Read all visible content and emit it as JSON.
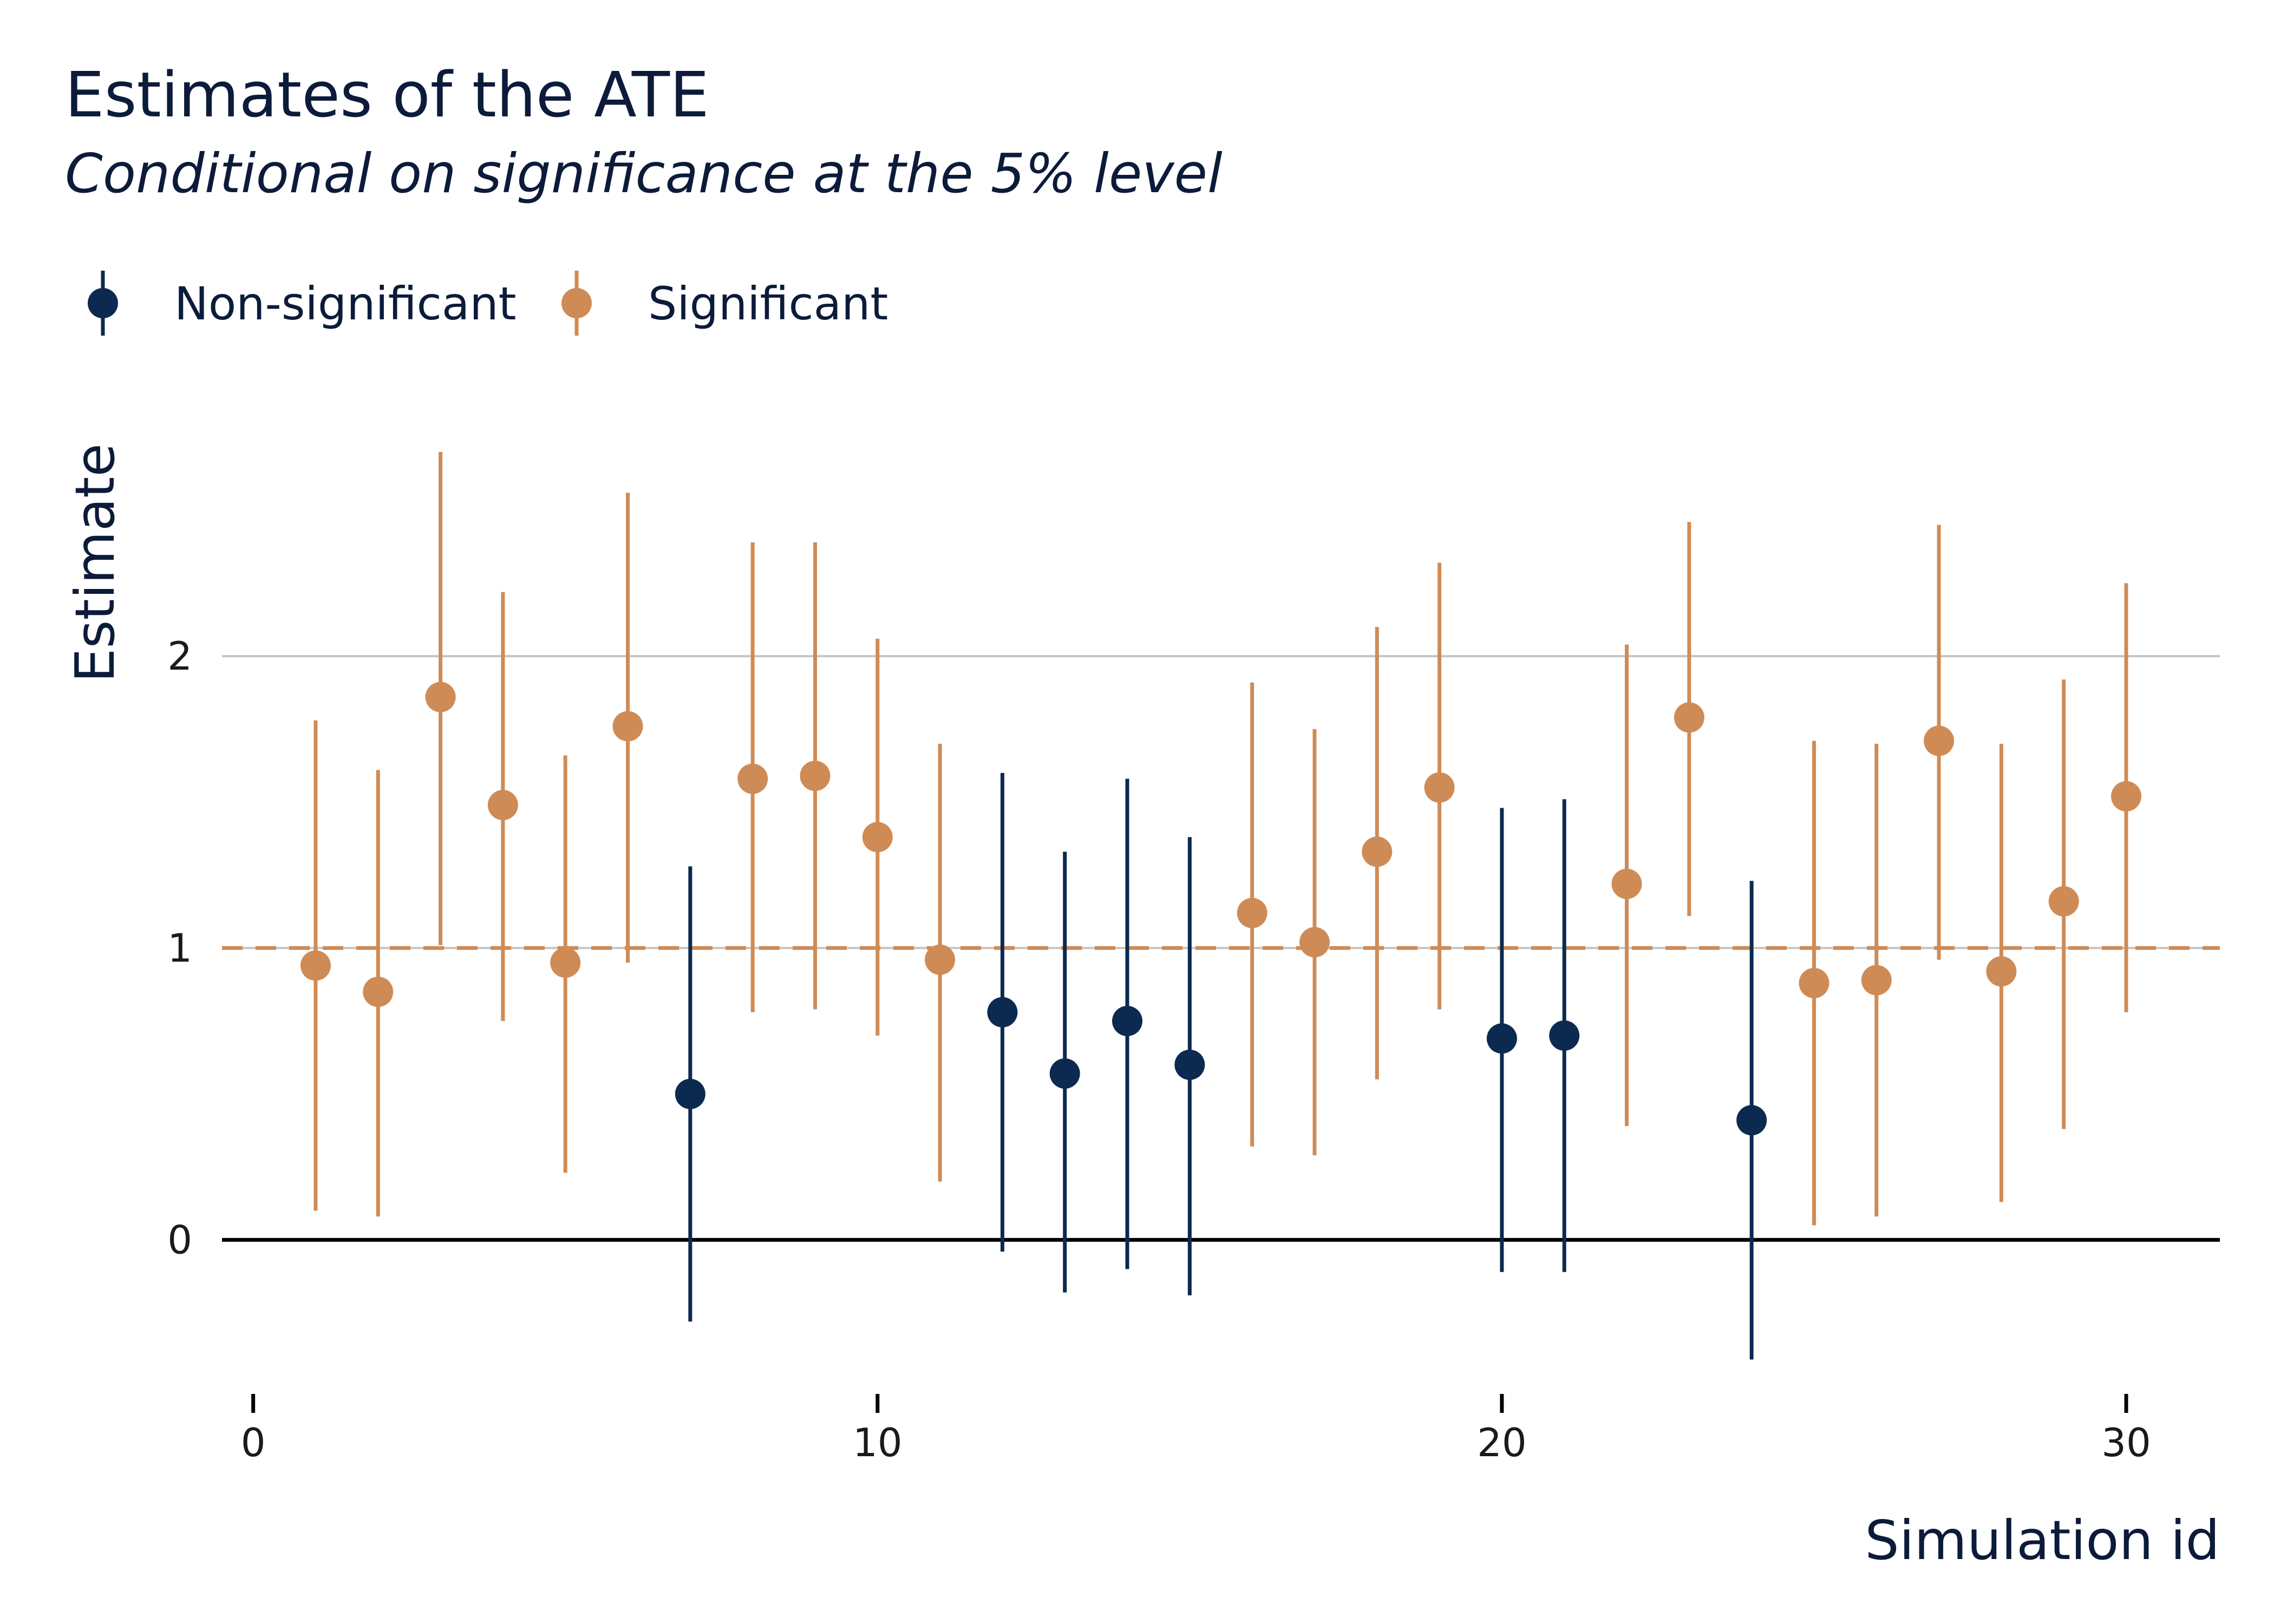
{
  "chart_data": {
    "type": "scatter",
    "title": "Estimates of the ATE",
    "subtitle": "Conditional on significance at the 5% level",
    "xlabel": "Simulation id",
    "ylabel": "Estimate",
    "xlim": [
      -0.5,
      31.5
    ],
    "ylim": [
      -0.5,
      2.95
    ],
    "x_ticks": [
      0,
      10,
      20,
      30
    ],
    "y_ticks": [
      0,
      1,
      2
    ],
    "grid": "horizontal",
    "legend_placement": "top-left",
    "reference_lines": [
      {
        "value": 0,
        "style": "solid"
      },
      {
        "value": 1,
        "style": "dashed"
      }
    ],
    "colors": {
      "Non-significant": "#0c2a4f",
      "Significant": "#cf8b55",
      "text": "#0c1b3a",
      "grid": "#c4c4c4",
      "zero_line": "#000000"
    },
    "series": [
      {
        "name": "Non-significant",
        "points": [
          {
            "x": 7,
            "y": 0.5,
            "lo": -0.28,
            "hi": 1.28
          },
          {
            "x": 12,
            "y": 0.78,
            "lo": -0.04,
            "hi": 1.6
          },
          {
            "x": 13,
            "y": 0.57,
            "lo": -0.18,
            "hi": 1.33
          },
          {
            "x": 14,
            "y": 0.75,
            "lo": -0.1,
            "hi": 1.58
          },
          {
            "x": 15,
            "y": 0.6,
            "lo": -0.19,
            "hi": 1.38
          },
          {
            "x": 20,
            "y": 0.69,
            "lo": -0.11,
            "hi": 1.48
          },
          {
            "x": 21,
            "y": 0.7,
            "lo": -0.11,
            "hi": 1.51
          },
          {
            "x": 24,
            "y": 0.41,
            "lo": -0.41,
            "hi": 1.23
          }
        ]
      },
      {
        "name": "Significant",
        "points": [
          {
            "x": 1,
            "y": 0.94,
            "lo": 0.1,
            "hi": 1.78
          },
          {
            "x": 2,
            "y": 0.85,
            "lo": 0.08,
            "hi": 1.61
          },
          {
            "x": 3,
            "y": 1.86,
            "lo": 1.01,
            "hi": 2.7
          },
          {
            "x": 4,
            "y": 1.49,
            "lo": 0.75,
            "hi": 2.22
          },
          {
            "x": 5,
            "y": 0.95,
            "lo": 0.23,
            "hi": 1.66
          },
          {
            "x": 6,
            "y": 1.76,
            "lo": 0.95,
            "hi": 2.56
          },
          {
            "x": 8,
            "y": 1.58,
            "lo": 0.78,
            "hi": 2.39
          },
          {
            "x": 9,
            "y": 1.59,
            "lo": 0.79,
            "hi": 2.39
          },
          {
            "x": 10,
            "y": 1.38,
            "lo": 0.7,
            "hi": 2.06
          },
          {
            "x": 11,
            "y": 0.96,
            "lo": 0.2,
            "hi": 1.7
          },
          {
            "x": 16,
            "y": 1.12,
            "lo": 0.32,
            "hi": 1.91
          },
          {
            "x": 17,
            "y": 1.02,
            "lo": 0.29,
            "hi": 1.75
          },
          {
            "x": 18,
            "y": 1.33,
            "lo": 0.55,
            "hi": 2.1
          },
          {
            "x": 19,
            "y": 1.55,
            "lo": 0.79,
            "hi": 2.32
          },
          {
            "x": 22,
            "y": 1.22,
            "lo": 0.39,
            "hi": 2.04
          },
          {
            "x": 23,
            "y": 1.79,
            "lo": 1.11,
            "hi": 2.46
          },
          {
            "x": 25,
            "y": 0.88,
            "lo": 0.05,
            "hi": 1.71
          },
          {
            "x": 26,
            "y": 0.89,
            "lo": 0.08,
            "hi": 1.7
          },
          {
            "x": 27,
            "y": 1.71,
            "lo": 0.96,
            "hi": 2.45
          },
          {
            "x": 28,
            "y": 0.92,
            "lo": 0.13,
            "hi": 1.7
          },
          {
            "x": 29,
            "y": 1.16,
            "lo": 0.38,
            "hi": 1.92
          },
          {
            "x": 30,
            "y": 1.52,
            "lo": 0.78,
            "hi": 2.25
          }
        ]
      }
    ]
  }
}
